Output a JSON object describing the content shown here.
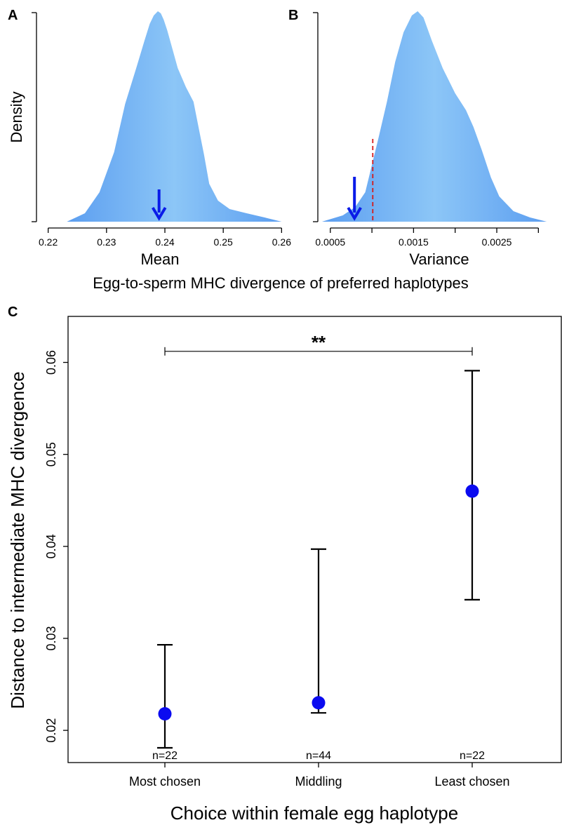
{
  "chart_data": [
    {
      "panel": "A",
      "type": "area",
      "ylabel": "Density",
      "xlabel": "Mean",
      "xlim": [
        0.218,
        0.262
      ],
      "xticks": [
        0.22,
        0.23,
        0.24,
        0.25,
        0.26
      ],
      "tick_labels": [
        "0.22",
        "0.23",
        "0.24",
        "0.25",
        "0.26"
      ],
      "observed_arrow": 0.239,
      "density": {
        "x": [
          0.2232,
          0.2263,
          0.2288,
          0.2313,
          0.2332,
          0.2352,
          0.2365,
          0.2374,
          0.2381,
          0.2388,
          0.2393,
          0.2398,
          0.2404,
          0.2412,
          0.2422,
          0.2436,
          0.2449,
          0.2459,
          0.2467,
          0.2476,
          0.2491,
          0.2511,
          0.254,
          0.2571,
          0.26
        ],
        "y": [
          0.0,
          0.04,
          0.14,
          0.33,
          0.56,
          0.74,
          0.86,
          0.94,
          0.98,
          1.0,
          0.99,
          0.96,
          0.91,
          0.83,
          0.73,
          0.64,
          0.57,
          0.43,
          0.32,
          0.18,
          0.1,
          0.06,
          0.04,
          0.02,
          0.0
        ]
      }
    },
    {
      "panel": "B",
      "type": "area",
      "xlabel": "Variance",
      "xlim": [
        0.00035,
        0.00325
      ],
      "xticks": [
        0.0005,
        0.001,
        0.0015,
        0.002,
        0.0025,
        0.003
      ],
      "tick_labels": [
        "0.0005",
        "",
        "0.0015",
        "",
        "0.0025",
        ""
      ],
      "observed_arrow": 0.00079,
      "dashed_line": 0.00101,
      "density": {
        "x": [
          0.0004,
          0.00065,
          0.0008,
          0.00092,
          0.001,
          0.00108,
          0.00118,
          0.00128,
          0.00138,
          0.00148,
          0.00155,
          0.00162,
          0.00172,
          0.00185,
          0.002,
          0.00213,
          0.00222,
          0.00232,
          0.00243,
          0.00253,
          0.0027,
          0.0029,
          0.0031
        ],
        "y": [
          0.0,
          0.03,
          0.07,
          0.14,
          0.27,
          0.4,
          0.57,
          0.76,
          0.9,
          0.98,
          1.0,
          0.97,
          0.86,
          0.73,
          0.61,
          0.53,
          0.45,
          0.34,
          0.21,
          0.12,
          0.05,
          0.02,
          0.0
        ]
      }
    },
    {
      "panel": "C",
      "type": "scatter",
      "ylabel": "Distance to intermediate MHC divergence",
      "xlabel": "Choice within female egg haplotype",
      "ylim": [
        0.0165,
        0.065
      ],
      "yticks": [
        0.02,
        0.03,
        0.04,
        0.05,
        0.06
      ],
      "ytick_labels": [
        "0.02",
        "0.03",
        "0.04",
        "0.05",
        "0.06"
      ],
      "categories": [
        "Most chosen",
        "Middling",
        "Least chosen"
      ],
      "values": [
        0.0218,
        0.023,
        0.046
      ],
      "lower": [
        0.0181,
        0.0219,
        0.0342
      ],
      "upper": [
        0.0293,
        0.0397,
        0.0591
      ],
      "n_labels": [
        "n=22",
        "n=44",
        "n=22"
      ],
      "significance": {
        "label": "**",
        "from": 0,
        "to": 2,
        "y": 0.0612
      }
    }
  ],
  "panel_labels": [
    "A",
    "B",
    "C"
  ],
  "shared_xlabel": "Egg-to-sperm MHC divergence of preferred haplotypes",
  "colors": {
    "density_fill_center": "#8cc6f7",
    "density_fill_edge": "#5c9ef0",
    "arrow": "#0a1be8",
    "dashed": "#d41a1a",
    "point": "#0b0bf0",
    "axis": "#000000"
  }
}
